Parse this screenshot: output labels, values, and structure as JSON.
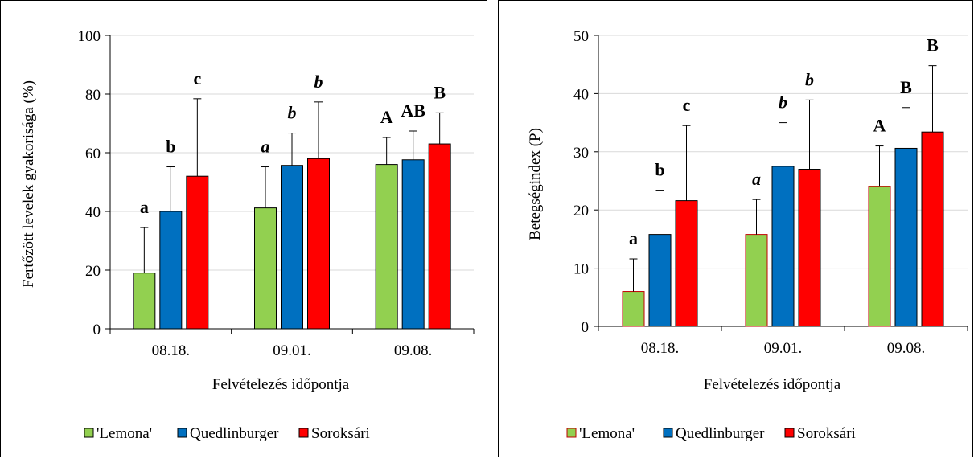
{
  "chart_data": [
    {
      "type": "bar",
      "categories": [
        "08.18.",
        "09.01.",
        "09.08."
      ],
      "xlabel": "Felvételezés időpontja",
      "ylabel": "Fertőzött levelek gyakorisága (%)",
      "ylim": [
        0,
        100
      ],
      "yticks": [
        "0",
        "20",
        "40",
        "60",
        "80",
        "100"
      ],
      "grid": true,
      "legend_position": "bottom",
      "series": [
        {
          "name": "'Lemona'",
          "color": "#92D050",
          "edge": "#000000",
          "values": [
            19,
            41.2,
            56
          ],
          "errors": [
            15.5,
            14,
            9.2
          ]
        },
        {
          "name": "Quedlinburger",
          "color": "#0070C0",
          "edge": "#000000",
          "values": [
            40,
            55.7,
            57.6
          ],
          "errors": [
            15.2,
            11,
            9.8
          ]
        },
        {
          "name": "Soroksári",
          "color": "#FF0000",
          "edge": "#000000",
          "values": [
            52,
            58,
            63
          ],
          "errors": [
            26.4,
            19.3,
            10.6
          ]
        }
      ],
      "annotations": [
        [
          "a",
          "a",
          "A"
        ],
        [
          "b",
          "b",
          "AB"
        ],
        [
          "c",
          "b",
          "B"
        ]
      ],
      "annotation_italic": [
        false,
        true,
        false
      ]
    },
    {
      "type": "bar",
      "categories": [
        "08.18.",
        "09.01.",
        "09.08."
      ],
      "xlabel": "Felvételezés időpontja",
      "ylabel": "Betegségindex (P)",
      "ylim": [
        0,
        50
      ],
      "yticks": [
        "0",
        "10",
        "20",
        "30",
        "40",
        "50"
      ],
      "grid": true,
      "legend_position": "bottom",
      "series": [
        {
          "name": "'Lemona'",
          "color": "#92D050",
          "edge": "#C00000",
          "values": [
            6,
            15.8,
            24
          ],
          "errors": [
            5.6,
            6,
            7
          ]
        },
        {
          "name": "Quedlinburger",
          "color": "#0070C0",
          "edge": "#000000",
          "values": [
            15.8,
            27.5,
            30.6
          ],
          "errors": [
            7.6,
            7.5,
            7
          ]
        },
        {
          "name": "Soroksári",
          "color": "#FF0000",
          "edge": "#000000",
          "values": [
            21.6,
            27,
            33.4
          ],
          "errors": [
            12.9,
            11.9,
            11.4
          ]
        }
      ],
      "annotations": [
        [
          "a",
          "a",
          "A"
        ],
        [
          "b",
          "b",
          "B"
        ],
        [
          "c",
          "b",
          "B"
        ]
      ],
      "annotation_italic": [
        false,
        true,
        false
      ]
    }
  ]
}
